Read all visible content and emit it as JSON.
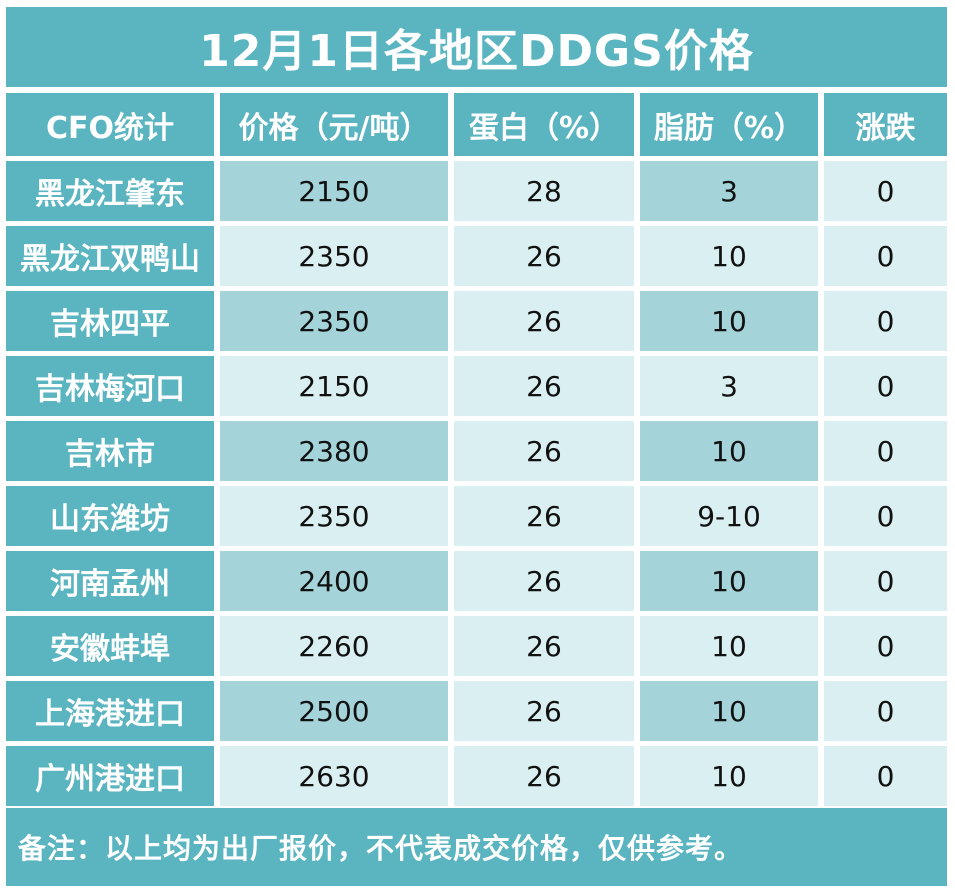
{
  "title": "12月1日各地区DDGS价格",
  "headers": [
    "CFO统计",
    "价格（元/吨）",
    "蛋白（%）",
    "脂肪（%）",
    "涨跌"
  ],
  "rows": [
    {
      "region": "黑龙江肇东",
      "price": "2150",
      "protein": "28",
      "fat": "3",
      "change": "0"
    },
    {
      "region": "黑龙江双鸭山",
      "price": "2350",
      "protein": "26",
      "fat": "10",
      "change": "0"
    },
    {
      "region": "吉林四平",
      "price": "2350",
      "protein": "26",
      "fat": "10",
      "change": "0"
    },
    {
      "region": "吉林梅河口",
      "price": "2150",
      "protein": "26",
      "fat": "3",
      "change": "0"
    },
    {
      "region": "吉林市",
      "price": "2380",
      "protein": "26",
      "fat": "10",
      "change": "0"
    },
    {
      "region": "山东潍坊",
      "price": "2350",
      "protein": "26",
      "fat": "9-10",
      "change": "0"
    },
    {
      "region": "河南孟州",
      "price": "2400",
      "protein": "26",
      "fat": "10",
      "change": "0"
    },
    {
      "region": "安徽蚌埠",
      "price": "2260",
      "protein": "26",
      "fat": "10",
      "change": "0"
    },
    {
      "region": "上海港进口",
      "price": "2500",
      "protein": "26",
      "fat": "10",
      "change": "0"
    },
    {
      "region": "广州港进口",
      "price": "2630",
      "protein": "26",
      "fat": "10",
      "change": "0"
    }
  ],
  "footer": "备注：以上均为出厂报价，不代表成交价格，仅供参考。",
  "colors": {
    "teal": "#5bb5c1",
    "cell_dark": "#a4d4da",
    "cell_light": "#daeff1"
  }
}
